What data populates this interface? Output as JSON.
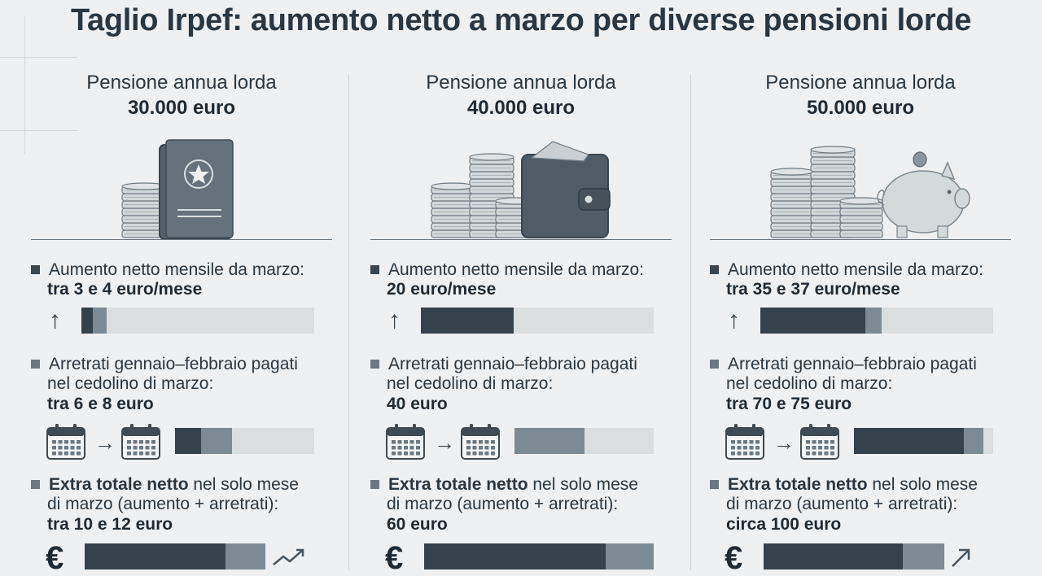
{
  "title": "Taglio Irpef: aumento netto a marzo per diverse pensioni lorde",
  "columns": [
    {
      "pension_label": "Pensione annua lorda",
      "pension_amount": "30.000 euro",
      "monthly_label": "Aumento netto mensile da marzo:",
      "monthly_value": "tra 3 e 4 euro/mese",
      "monthly_bar": {
        "dark": 0.05,
        "mid": 0.11
      },
      "arrears_label_1": "Arretrati gennaio–febbraio pagati",
      "arrears_label_2": "nel cedolino di marzo:",
      "arrears_value": "tra 6 e 8 euro",
      "arrears_bar": {
        "dark": 0.19,
        "mid": 0.41
      },
      "extra_label_bold": "Extra totale netto",
      "extra_label_rest": " nel solo mese",
      "extra_label_2": "di marzo (aumento + arretrati):",
      "extra_value": "tra 10 e 12 euro",
      "extra_bar": {
        "dark": 0.78,
        "mid": 1.0
      },
      "illustration": "passport-coins",
      "trend_icon": "trend-up-icon"
    },
    {
      "pension_label": "Pensione annua lorda",
      "pension_amount": "40.000 euro",
      "monthly_label": "Aumento netto mensile da marzo:",
      "monthly_value": "20 euro/mese",
      "monthly_bar": {
        "dark": 0.4,
        "mid": 0.4
      },
      "arrears_label_1": "Arretrati gennaio–febbraio pagati",
      "arrears_label_2": "nel cedolino di marzo:",
      "arrears_value": "40 euro",
      "arrears_bar": {
        "dark": 0.0,
        "mid": 0.5
      },
      "extra_label_bold": "Extra totale netto",
      "extra_label_rest": " nel solo mese",
      "extra_label_2": "di marzo (aumento + arretrati):",
      "extra_value": "60 euro",
      "extra_bar": {
        "dark": 0.79,
        "mid": 1.0
      },
      "illustration": "coins-wallet",
      "trend_icon": ""
    },
    {
      "pension_label": "Pensione annua lorda",
      "pension_amount": "50.000 euro",
      "monthly_label": "Aumento netto mensile da marzo:",
      "monthly_value": "tra 35 e 37 euro/mese",
      "monthly_bar": {
        "dark": 0.45,
        "mid": 0.52
      },
      "arrears_label_1": "Arretrati gennaio–febbraio pagati",
      "arrears_label_2": "nel cedolino di marzo:",
      "arrears_value": "tra 70 e 75 euro",
      "arrears_bar": {
        "dark": 0.79,
        "mid": 0.93
      },
      "extra_label_bold": "Extra totale netto",
      "extra_label_rest": " nel solo mese",
      "extra_label_2": "di marzo (aumento + arretrati):",
      "extra_value": "circa 100 euro",
      "extra_bar": {
        "dark": 0.77,
        "mid": 1.0
      },
      "illustration": "coins-piggybank",
      "trend_icon": "arrow-up-right-icon"
    }
  ],
  "icons": {
    "arrow_up": "↑",
    "arrow_right": "→",
    "euro": "€"
  },
  "colors": {
    "dark_bar": "#36424b",
    "mid_bar": "#7c8a93",
    "track": "#dadedf",
    "background": "#eef0f1"
  }
}
